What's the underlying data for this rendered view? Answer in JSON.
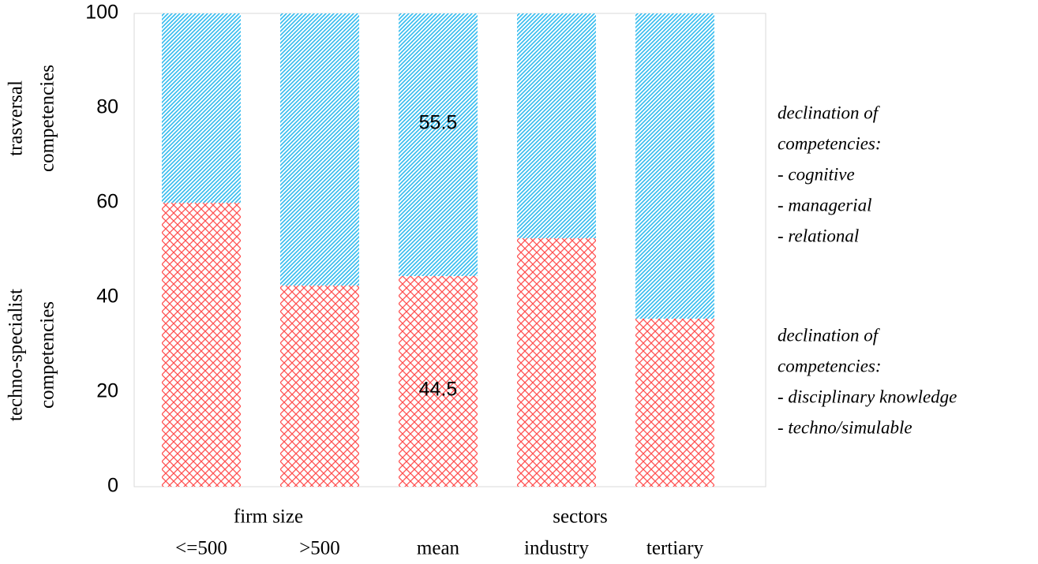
{
  "chart_data": {
    "type": "stacked_bar",
    "categories": [
      "<=500",
      ">500",
      "mean",
      "industry",
      "tertiary"
    ],
    "group_labels": [
      "firm size",
      "sectors"
    ],
    "series": [
      {
        "color": "#ff5050",
        "values": [
          60,
          42.5,
          44.5,
          52.5,
          35.5
        ],
        "value_labels": [
          null,
          null,
          "44.5",
          null,
          null
        ]
      },
      {
        "color": "#33bbee",
        "values": [
          40,
          57.5,
          55.5,
          47.5,
          64.5
        ],
        "value_labels": [
          null,
          null,
          "55.5",
          null,
          null
        ]
      }
    ],
    "y_group_labels": [
      [
        "techno-specialist",
        "competencies"
      ],
      [
        "trasversal",
        "competencies"
      ]
    ],
    "annotations": [
      [
        "declination of",
        "competencies:",
        "- disciplinary knowledge",
        "- techno/simulable"
      ],
      [
        "declination of",
        "competencies:",
        "- cognitive",
        "- managerial",
        "- relational"
      ]
    ],
    "ylim": [
      0,
      100
    ],
    "yticks": [
      0,
      20,
      40,
      60,
      80,
      100
    ],
    "grid": false
  }
}
